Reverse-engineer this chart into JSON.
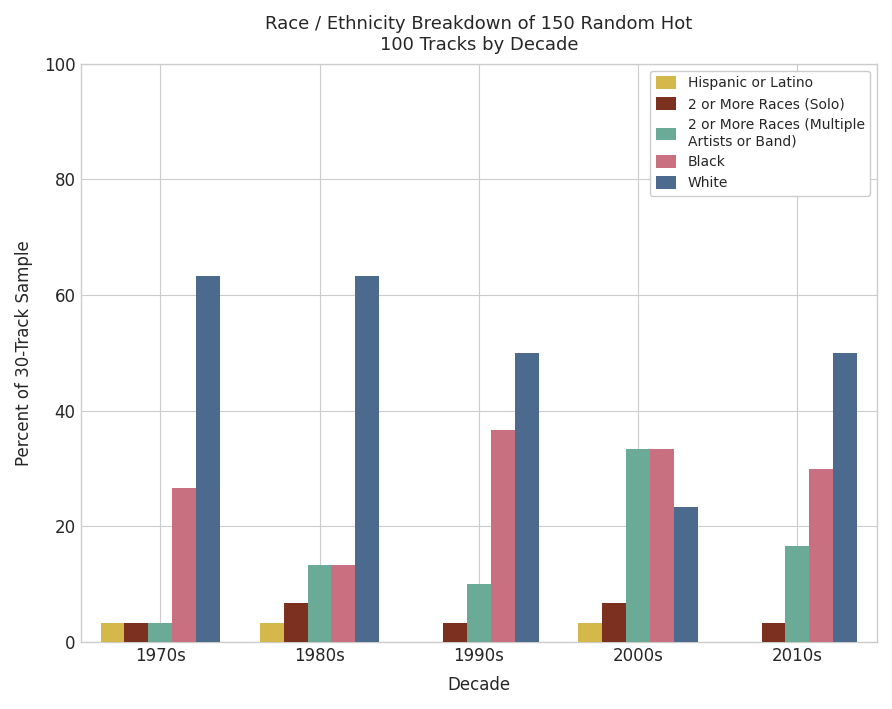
{
  "title": "Race / Ethnicity Breakdown of 150 Random Hot\n100 Tracks by Decade",
  "xlabel": "Decade",
  "ylabel": "Percent of 30-Track Sample",
  "categories": [
    "1970s",
    "1980s",
    "1990s",
    "2000s",
    "2010s"
  ],
  "series": [
    {
      "label": "Hispanic or Latino",
      "color": "#d4b84a",
      "values": [
        3.33,
        3.33,
        0,
        3.33,
        0
      ]
    },
    {
      "label": "2 or More Races (Solo)",
      "color": "#7b3020",
      "values": [
        3.33,
        6.67,
        3.33,
        6.67,
        3.33
      ]
    },
    {
      "label": "2 or More Races (Multiple\nArtists or Band)",
      "color": "#6aaa96",
      "values": [
        3.33,
        13.33,
        10.0,
        33.33,
        16.67
      ]
    },
    {
      "label": "Black",
      "color": "#c97080",
      "values": [
        26.67,
        13.33,
        36.67,
        33.33,
        30.0
      ]
    },
    {
      "label": "White",
      "color": "#4c6a8d",
      "values": [
        63.33,
        63.33,
        50.0,
        23.33,
        50.0
      ]
    }
  ],
  "ylim": [
    0,
    100
  ],
  "yticks": [
    0,
    20,
    40,
    60,
    80,
    100
  ],
  "legend_loc": "upper right",
  "figsize": [
    8.92,
    7.09
  ],
  "dpi": 100,
  "bar_width": 0.15,
  "title_fontsize": 13
}
